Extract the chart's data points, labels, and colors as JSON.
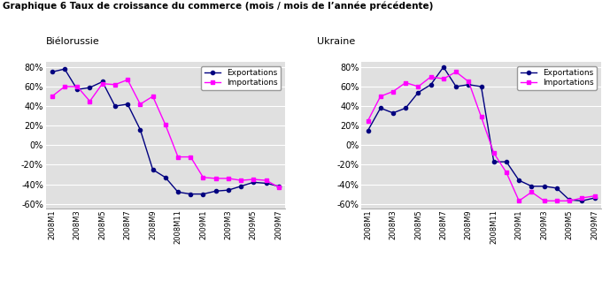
{
  "title": "Graphique 6 Taux de croissance du commerce (mois / mois de l’année précédente)",
  "subtitle_left": "Biélorussie",
  "subtitle_right": "Ukraine",
  "x_labels": [
    "2008M1",
    "2008M3",
    "2008M5",
    "2008M7",
    "2008M9",
    "2008M11",
    "2009M1",
    "2009M3",
    "2009M5",
    "2009M7"
  ],
  "bielorussie_exports": [
    0.75,
    0.78,
    0.57,
    0.59,
    0.65,
    0.4,
    0.42,
    0.16,
    -0.25,
    -0.33,
    -0.48,
    -0.5,
    -0.5,
    -0.47,
    -0.46,
    -0.42,
    -0.38,
    -0.39,
    -0.42
  ],
  "bielorussie_imports": [
    0.5,
    0.6,
    0.6,
    0.45,
    0.63,
    0.62,
    0.67,
    0.42,
    0.5,
    0.21,
    -0.12,
    -0.12,
    -0.33,
    -0.34,
    -0.34,
    -0.36,
    -0.35,
    -0.36,
    -0.43
  ],
  "ukraine_exports": [
    0.15,
    0.38,
    0.33,
    0.38,
    0.54,
    0.62,
    0.8,
    0.6,
    0.62,
    0.6,
    -0.17,
    -0.17,
    -0.36,
    -0.42,
    -0.42,
    -0.44,
    -0.56,
    -0.57,
    -0.54
  ],
  "ukraine_imports": [
    0.25,
    0.5,
    0.55,
    0.64,
    0.6,
    0.7,
    0.68,
    0.75,
    0.65,
    0.29,
    -0.08,
    -0.28,
    -0.57,
    -0.48,
    -0.57,
    -0.57,
    -0.57,
    -0.54,
    -0.52
  ],
  "export_color": "#000080",
  "import_color": "#FF00FF",
  "ylim": [
    -0.65,
    0.85
  ],
  "yticks": [
    -0.6,
    -0.4,
    -0.2,
    0.0,
    0.2,
    0.4,
    0.6,
    0.8
  ],
  "legend_export": "Exportations",
  "legend_import": "Importations",
  "plot_bg": "#e8e8e8",
  "tick_labels_every_other": [
    "2008M1",
    "2008M3",
    "2008M5",
    "2008M7",
    "2008M9",
    "2008M11",
    "2009M1",
    "2009M3",
    "2009M5",
    "2009M7"
  ]
}
